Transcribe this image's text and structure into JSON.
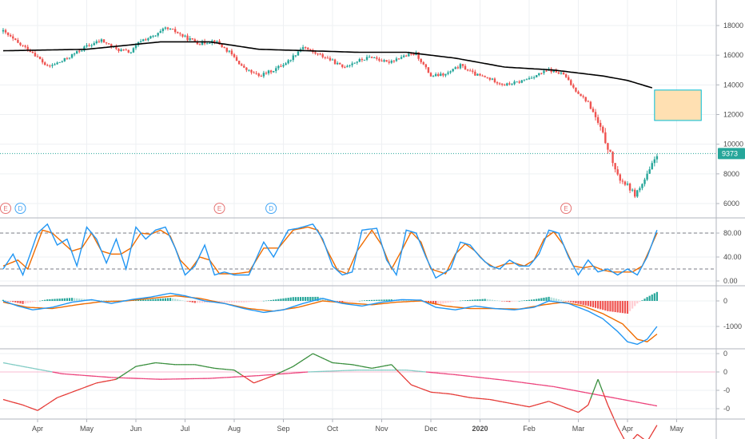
{
  "colors": {
    "up": "#26a69a",
    "down": "#ef5350",
    "ma": "#000000",
    "stoch_k": "#2196f3",
    "stoch_d": "#ef6c00",
    "macd_line": "#2196f3",
    "macd_signal": "#ef6c00",
    "rs_green": "#388e3c",
    "rs_red": "#e53935",
    "rs_ma_teal": "#80cbc4",
    "rs_ma_pink": "#ec407a",
    "rect_fill": "#ffe0b2",
    "rect_border": "#00bcd4",
    "earnings": "#e57373",
    "dividend": "#42a5f5",
    "grid": "#eef0f3",
    "last_price": "#26a69a"
  },
  "price_axis": {
    "ticks": [
      "18000",
      "16000",
      "14000",
      "12000",
      "10000",
      "8000",
      "6000"
    ]
  },
  "last_price": {
    "label": "9373",
    "value": 9373
  },
  "stoch_axis": {
    "ticks": [
      "80.00",
      "40.00",
      "0.00"
    ]
  },
  "macd_axis": {
    "ticks": [
      "0",
      "-1000"
    ]
  },
  "rs_axis": {
    "ticks": [
      "0",
      "0",
      "-0",
      "-0"
    ]
  },
  "x_axis": {
    "labels": [
      {
        "text": "Apr",
        "bold": false
      },
      {
        "text": "May",
        "bold": false
      },
      {
        "text": "Jun",
        "bold": false
      },
      {
        "text": "Jul",
        "bold": false
      },
      {
        "text": "Aug",
        "bold": false
      },
      {
        "text": "Sep",
        "bold": false
      },
      {
        "text": "Oct",
        "bold": false
      },
      {
        "text": "Nov",
        "bold": false
      },
      {
        "text": "Dec",
        "bold": false
      },
      {
        "text": "2020",
        "bold": true
      },
      {
        "text": "Feb",
        "bold": false
      },
      {
        "text": "Mar",
        "bold": false
      },
      {
        "text": "Apr",
        "bold": false
      },
      {
        "text": "May",
        "bold": false
      }
    ]
  },
  "markers": [
    {
      "label": "E",
      "kind": "earnings",
      "month_pos": 0.0
    },
    {
      "label": "D",
      "kind": "dividend",
      "month_pos": 0.3
    },
    {
      "label": "E",
      "kind": "earnings",
      "month_pos": 4.35
    },
    {
      "label": "D",
      "kind": "dividend",
      "month_pos": 5.4
    },
    {
      "label": "E",
      "kind": "earnings",
      "month_pos": 11.4
    }
  ],
  "chart_data": {
    "type": "candlestick",
    "price_range": [
      5200,
      19200
    ],
    "price_keypoints": [
      [
        -0.7,
        17600
      ],
      [
        -0.4,
        16800
      ],
      [
        -0.1,
        16200
      ],
      [
        0.2,
        15200
      ],
      [
        0.5,
        15600
      ],
      [
        0.8,
        16200
      ],
      [
        1.0,
        16600
      ],
      [
        1.3,
        17000
      ],
      [
        1.6,
        16400
      ],
      [
        1.9,
        16200
      ],
      [
        2.1,
        17000
      ],
      [
        2.4,
        17300
      ],
      [
        2.6,
        17800
      ],
      [
        2.8,
        17600
      ],
      [
        3.0,
        17200
      ],
      [
        3.3,
        16800
      ],
      [
        3.6,
        17000
      ],
      [
        3.9,
        16200
      ],
      [
        4.2,
        15100
      ],
      [
        4.5,
        14600
      ],
      [
        4.8,
        15000
      ],
      [
        5.1,
        15600
      ],
      [
        5.4,
        16600
      ],
      [
        5.6,
        16200
      ],
      [
        5.9,
        15800
      ],
      [
        6.2,
        15200
      ],
      [
        6.5,
        15600
      ],
      [
        6.8,
        15900
      ],
      [
        7.1,
        15500
      ],
      [
        7.4,
        15900
      ],
      [
        7.7,
        16100
      ],
      [
        8.0,
        14600
      ],
      [
        8.3,
        14700
      ],
      [
        8.6,
        15300
      ],
      [
        8.9,
        14700
      ],
      [
        9.2,
        14400
      ],
      [
        9.5,
        14000
      ],
      [
        9.8,
        14200
      ],
      [
        10.1,
        14600
      ],
      [
        10.4,
        15000
      ],
      [
        10.7,
        14700
      ],
      [
        10.9,
        13800
      ],
      [
        11.2,
        12800
      ],
      [
        11.4,
        11400
      ],
      [
        11.6,
        9800
      ],
      [
        11.8,
        7800
      ],
      [
        12.0,
        7200
      ],
      [
        12.15,
        6600
      ],
      [
        12.3,
        7300
      ],
      [
        12.45,
        8200
      ],
      [
        12.6,
        9373
      ]
    ],
    "ma_keypoints": [
      [
        -0.7,
        16300
      ],
      [
        1.0,
        16400
      ],
      [
        2.5,
        16900
      ],
      [
        3.5,
        16900
      ],
      [
        4.5,
        16400
      ],
      [
        5.5,
        16300
      ],
      [
        6.5,
        16200
      ],
      [
        7.5,
        16200
      ],
      [
        8.5,
        15800
      ],
      [
        9.5,
        15200
      ],
      [
        10.5,
        15000
      ],
      [
        11.0,
        14800
      ],
      [
        11.5,
        14600
      ],
      [
        12.0,
        14300
      ],
      [
        12.5,
        13800
      ]
    ],
    "box": {
      "month_start": 12.55,
      "month_end": 13.5,
      "price_top": 13650,
      "price_bottom": 11600
    },
    "stochastic": {
      "range": [
        0,
        100
      ],
      "levels": [
        80,
        20
      ],
      "k_keypoints": [
        [
          -0.7,
          20
        ],
        [
          -0.5,
          45
        ],
        [
          -0.3,
          10
        ],
        [
          0.0,
          80
        ],
        [
          0.2,
          95
        ],
        [
          0.4,
          60
        ],
        [
          0.6,
          70
        ],
        [
          0.8,
          25
        ],
        [
          1.0,
          90
        ],
        [
          1.2,
          70
        ],
        [
          1.4,
          30
        ],
        [
          1.6,
          70
        ],
        [
          1.8,
          20
        ],
        [
          2.0,
          90
        ],
        [
          2.2,
          70
        ],
        [
          2.4,
          85
        ],
        [
          2.6,
          90
        ],
        [
          2.8,
          55
        ],
        [
          3.0,
          10
        ],
        [
          3.2,
          25
        ],
        [
          3.4,
          60
        ],
        [
          3.6,
          10
        ],
        [
          3.8,
          15
        ],
        [
          4.0,
          10
        ],
        [
          4.3,
          10
        ],
        [
          4.6,
          65
        ],
        [
          4.8,
          40
        ],
        [
          5.1,
          85
        ],
        [
          5.3,
          88
        ],
        [
          5.6,
          95
        ],
        [
          5.8,
          70
        ],
        [
          6.0,
          25
        ],
        [
          6.2,
          10
        ],
        [
          6.4,
          15
        ],
        [
          6.6,
          85
        ],
        [
          6.9,
          88
        ],
        [
          7.1,
          35
        ],
        [
          7.3,
          10
        ],
        [
          7.5,
          85
        ],
        [
          7.7,
          80
        ],
        [
          7.9,
          40
        ],
        [
          8.1,
          5
        ],
        [
          8.4,
          20
        ],
        [
          8.6,
          65
        ],
        [
          8.8,
          60
        ],
        [
          9.0,
          40
        ],
        [
          9.2,
          25
        ],
        [
          9.4,
          20
        ],
        [
          9.6,
          35
        ],
        [
          9.8,
          25
        ],
        [
          10.0,
          25
        ],
        [
          10.2,
          45
        ],
        [
          10.4,
          85
        ],
        [
          10.6,
          80
        ],
        [
          10.8,
          40
        ],
        [
          11.0,
          10
        ],
        [
          11.2,
          35
        ],
        [
          11.4,
          15
        ],
        [
          11.6,
          20
        ],
        [
          11.8,
          10
        ],
        [
          12.0,
          20
        ],
        [
          12.2,
          10
        ],
        [
          12.4,
          40
        ],
        [
          12.6,
          85
        ]
      ],
      "d_keypoints": [
        [
          -0.7,
          25
        ],
        [
          -0.4,
          35
        ],
        [
          -0.2,
          20
        ],
        [
          0.1,
          85
        ],
        [
          0.3,
          80
        ],
        [
          0.5,
          65
        ],
        [
          0.7,
          50
        ],
        [
          0.9,
          55
        ],
        [
          1.1,
          80
        ],
        [
          1.3,
          50
        ],
        [
          1.5,
          45
        ],
        [
          1.7,
          45
        ],
        [
          1.9,
          55
        ],
        [
          2.1,
          80
        ],
        [
          2.3,
          78
        ],
        [
          2.5,
          85
        ],
        [
          2.7,
          75
        ],
        [
          2.9,
          35
        ],
        [
          3.1,
          18
        ],
        [
          3.3,
          40
        ],
        [
          3.5,
          35
        ],
        [
          3.7,
          12
        ],
        [
          4.0,
          12
        ],
        [
          4.3,
          15
        ],
        [
          4.6,
          55
        ],
        [
          4.9,
          55
        ],
        [
          5.2,
          85
        ],
        [
          5.5,
          90
        ],
        [
          5.7,
          85
        ],
        [
          5.9,
          50
        ],
        [
          6.1,
          18
        ],
        [
          6.3,
          12
        ],
        [
          6.5,
          50
        ],
        [
          6.8,
          85
        ],
        [
          7.0,
          60
        ],
        [
          7.2,
          20
        ],
        [
          7.4,
          50
        ],
        [
          7.6,
          82
        ],
        [
          7.8,
          65
        ],
        [
          8.0,
          20
        ],
        [
          8.3,
          12
        ],
        [
          8.5,
          45
        ],
        [
          8.7,
          62
        ],
        [
          8.9,
          50
        ],
        [
          9.1,
          32
        ],
        [
          9.3,
          22
        ],
        [
          9.5,
          28
        ],
        [
          9.7,
          30
        ],
        [
          9.9,
          25
        ],
        [
          10.1,
          35
        ],
        [
          10.3,
          70
        ],
        [
          10.5,
          82
        ],
        [
          10.7,
          60
        ],
        [
          10.9,
          25
        ],
        [
          11.1,
          22
        ],
        [
          11.3,
          25
        ],
        [
          11.5,
          18
        ],
        [
          11.7,
          15
        ],
        [
          11.9,
          15
        ],
        [
          12.1,
          15
        ],
        [
          12.3,
          25
        ],
        [
          12.6,
          80
        ]
      ]
    },
    "macd": {
      "range": [
        -1800,
        400
      ],
      "macd_keypoints": [
        [
          -0.7,
          0
        ],
        [
          -0.4,
          -200
        ],
        [
          -0.1,
          -350
        ],
        [
          0.3,
          -250
        ],
        [
          0.7,
          -50
        ],
        [
          1.1,
          50
        ],
        [
          1.5,
          -100
        ],
        [
          1.9,
          50
        ],
        [
          2.3,
          150
        ],
        [
          2.7,
          300
        ],
        [
          3.0,
          200
        ],
        [
          3.4,
          0
        ],
        [
          3.8,
          -100
        ],
        [
          4.2,
          -300
        ],
        [
          4.6,
          -450
        ],
        [
          5.0,
          -350
        ],
        [
          5.4,
          -100
        ],
        [
          5.8,
          100
        ],
        [
          6.2,
          -100
        ],
        [
          6.6,
          -200
        ],
        [
          7.0,
          -50
        ],
        [
          7.4,
          50
        ],
        [
          7.8,
          30
        ],
        [
          8.1,
          -250
        ],
        [
          8.5,
          -350
        ],
        [
          8.9,
          -200
        ],
        [
          9.3,
          -300
        ],
        [
          9.7,
          -350
        ],
        [
          10.1,
          -250
        ],
        [
          10.4,
          0
        ],
        [
          10.8,
          -100
        ],
        [
          11.2,
          -400
        ],
        [
          11.5,
          -700
        ],
        [
          11.8,
          -1200
        ],
        [
          12.0,
          -1600
        ],
        [
          12.2,
          -1700
        ],
        [
          12.4,
          -1500
        ],
        [
          12.6,
          -1000
        ]
      ],
      "signal_keypoints": [
        [
          -0.7,
          -50
        ],
        [
          -0.2,
          -250
        ],
        [
          0.3,
          -300
        ],
        [
          0.8,
          -150
        ],
        [
          1.3,
          -30
        ],
        [
          1.8,
          0
        ],
        [
          2.3,
          100
        ],
        [
          2.8,
          200
        ],
        [
          3.3,
          100
        ],
        [
          3.8,
          -100
        ],
        [
          4.3,
          -300
        ],
        [
          4.8,
          -400
        ],
        [
          5.3,
          -250
        ],
        [
          5.8,
          0
        ],
        [
          6.3,
          -80
        ],
        [
          6.8,
          -150
        ],
        [
          7.3,
          -50
        ],
        [
          7.8,
          0
        ],
        [
          8.3,
          -200
        ],
        [
          8.8,
          -300
        ],
        [
          9.3,
          -300
        ],
        [
          9.8,
          -320
        ],
        [
          10.3,
          -150
        ],
        [
          10.7,
          -50
        ],
        [
          11.1,
          -200
        ],
        [
          11.5,
          -500
        ],
        [
          11.9,
          -900
        ],
        [
          12.2,
          -1500
        ],
        [
          12.4,
          -1600
        ],
        [
          12.6,
          -1300
        ]
      ],
      "hist_keypoints": [
        [
          -0.7,
          40
        ],
        [
          -0.3,
          -120
        ],
        [
          0.2,
          60
        ],
        [
          0.7,
          120
        ],
        [
          1.2,
          30
        ],
        [
          1.7,
          20
        ],
        [
          2.2,
          50
        ],
        [
          2.7,
          120
        ],
        [
          3.2,
          -80
        ],
        [
          3.7,
          -60
        ],
        [
          4.2,
          -60
        ],
        [
          4.7,
          20
        ],
        [
          5.2,
          150
        ],
        [
          5.7,
          160
        ],
        [
          6.2,
          -60
        ],
        [
          6.7,
          30
        ],
        [
          7.2,
          60
        ],
        [
          7.7,
          30
        ],
        [
          8.1,
          -150
        ],
        [
          8.6,
          10
        ],
        [
          9.1,
          80
        ],
        [
          9.6,
          -40
        ],
        [
          10.1,
          60
        ],
        [
          10.4,
          160
        ],
        [
          10.8,
          -30
        ],
        [
          11.2,
          -200
        ],
        [
          11.6,
          -400
        ],
        [
          12.0,
          -500
        ],
        [
          12.2,
          -100
        ],
        [
          12.4,
          150
        ],
        [
          12.6,
          350
        ]
      ]
    },
    "relative_strength": {
      "range": [
        -5,
        1.4
      ],
      "rs_keypoints": [
        [
          -0.7,
          -1.5
        ],
        [
          -0.3,
          -1.8
        ],
        [
          0.0,
          -2.1
        ],
        [
          0.4,
          -1.4
        ],
        [
          0.8,
          -1.0
        ],
        [
          1.2,
          -0.6
        ],
        [
          1.6,
          -0.4
        ],
        [
          2.0,
          0.3
        ],
        [
          2.4,
          0.5
        ],
        [
          2.8,
          0.4
        ],
        [
          3.2,
          0.4
        ],
        [
          3.6,
          0.2
        ],
        [
          4.0,
          0.1
        ],
        [
          4.4,
          -0.6
        ],
        [
          4.8,
          -0.2
        ],
        [
          5.2,
          0.3
        ],
        [
          5.6,
          1.0
        ],
        [
          6.0,
          0.5
        ],
        [
          6.4,
          0.4
        ],
        [
          6.8,
          0.2
        ],
        [
          7.2,
          0.4
        ],
        [
          7.6,
          -0.7
        ],
        [
          8.0,
          -1.1
        ],
        [
          8.4,
          -1.2
        ],
        [
          8.8,
          -1.4
        ],
        [
          9.2,
          -1.5
        ],
        [
          9.6,
          -1.7
        ],
        [
          10.0,
          -1.9
        ],
        [
          10.4,
          -1.6
        ],
        [
          10.8,
          -2.0
        ],
        [
          11.0,
          -2.2
        ],
        [
          11.2,
          -1.8
        ],
        [
          11.4,
          -0.4
        ],
        [
          11.6,
          -1.8
        ],
        [
          11.8,
          -3.0
        ],
        [
          12.0,
          -4.0
        ],
        [
          12.2,
          -3.4
        ],
        [
          12.4,
          -3.8
        ],
        [
          12.6,
          -2.9
        ]
      ],
      "rs_ma_keypoints": [
        [
          -0.7,
          0.5
        ],
        [
          0.5,
          -0.1
        ],
        [
          1.5,
          -0.3
        ],
        [
          2.5,
          -0.4
        ],
        [
          3.5,
          -0.35
        ],
        [
          4.5,
          -0.2
        ],
        [
          5.5,
          0.0
        ],
        [
          6.5,
          0.1
        ],
        [
          7.5,
          0.1
        ],
        [
          8.5,
          -0.15
        ],
        [
          9.5,
          -0.45
        ],
        [
          10.5,
          -0.8
        ],
        [
          11.5,
          -1.3
        ],
        [
          12.6,
          -1.85
        ]
      ]
    }
  }
}
